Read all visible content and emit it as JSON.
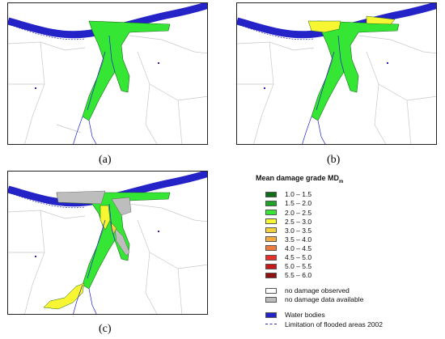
{
  "panels": [
    {
      "id": "a",
      "label": "(a)"
    },
    {
      "id": "b",
      "label": "(b)"
    },
    {
      "id": "c",
      "label": "(c)"
    }
  ],
  "legend": {
    "title": "Mean damage grade MD",
    "title_subscript": "m",
    "grades": [
      {
        "label": "1.0 – 1.5",
        "color": "#0f6e17"
      },
      {
        "label": "1.5 – 2.0",
        "color": "#1ea326"
      },
      {
        "label": "2.0 – 2.5",
        "color": "#35e635"
      },
      {
        "label": "2.5 – 3.0",
        "color": "#f8f533"
      },
      {
        "label": "3.0 – 3.5",
        "color": "#f3d23a"
      },
      {
        "label": "3.5 – 4.0",
        "color": "#f2ab40"
      },
      {
        "label": "4.0 – 4.5",
        "color": "#ee7a3c"
      },
      {
        "label": "4.5 – 5.0",
        "color": "#e8302a"
      },
      {
        "label": "5.0 – 5.5",
        "color": "#c81a1a"
      },
      {
        "label": "5.5 – 6.0",
        "color": "#8e1010"
      }
    ],
    "other": [
      {
        "label": "no damage observed",
        "color": "#ffffff"
      },
      {
        "label": "no damage data available",
        "color": "#bdbdbd"
      }
    ],
    "water": {
      "label": "Water bodies",
      "color": "#2323c8"
    },
    "flood_limit": {
      "label": "Limitation of flooded areas 2002",
      "color": "#2a2aa8"
    }
  }
}
